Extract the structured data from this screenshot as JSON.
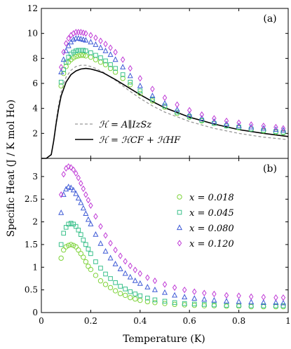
{
  "chart_data": [
    {
      "panel": "(a)",
      "type": "scatter",
      "xlabel": "Temperature (K)",
      "ylabel": "Specific Heat (J / K mol Ho)",
      "xlim": [
        0,
        1
      ],
      "ylim": [
        0,
        12
      ],
      "yticks": [
        "2",
        "4",
        "6",
        "8",
        "10",
        "12"
      ],
      "legend_placement": "lower-left",
      "lines": [
        {
          "name": "𝓗 = A∥ I_z S_z",
          "style": "dashed",
          "color": "#999999",
          "x": [
            0.0,
            0.02,
            0.04,
            0.05,
            0.06,
            0.07,
            0.08,
            0.1,
            0.12,
            0.14,
            0.16,
            0.18,
            0.2,
            0.22,
            0.25,
            0.3,
            0.35,
            0.4,
            0.45,
            0.5,
            0.6,
            0.7,
            0.8,
            0.9,
            1.0
          ],
          "y": [
            0.0,
            0.0,
            0.3,
            1.5,
            3.0,
            4.3,
            5.3,
            6.5,
            7.05,
            7.35,
            7.45,
            7.45,
            7.35,
            7.2,
            6.9,
            6.25,
            5.5,
            4.8,
            4.2,
            3.7,
            2.95,
            2.4,
            2.0,
            1.7,
            1.5
          ]
        },
        {
          "name": "𝓗 = 𝓗_CF + 𝓗_HF",
          "style": "solid",
          "color": "#000000",
          "x": [
            0.0,
            0.02,
            0.04,
            0.05,
            0.06,
            0.07,
            0.08,
            0.1,
            0.12,
            0.14,
            0.16,
            0.18,
            0.2,
            0.22,
            0.25,
            0.3,
            0.35,
            0.4,
            0.45,
            0.5,
            0.6,
            0.7,
            0.8,
            0.9,
            1.0
          ],
          "y": [
            0.0,
            0.0,
            0.3,
            1.4,
            2.8,
            4.0,
            5.0,
            6.1,
            6.7,
            7.0,
            7.15,
            7.2,
            7.15,
            7.05,
            6.85,
            6.3,
            5.7,
            5.1,
            4.55,
            4.05,
            3.3,
            2.75,
            2.3,
            2.0,
            1.75
          ]
        }
      ],
      "series": [
        {
          "x_value": "0.018",
          "marker": "circle",
          "color": "#7ed33a",
          "x": [
            0.08,
            0.09,
            0.1,
            0.11,
            0.12,
            0.13,
            0.14,
            0.15,
            0.16,
            0.17,
            0.18,
            0.2,
            0.22,
            0.24,
            0.26,
            0.28,
            0.3,
            0.33,
            0.36,
            0.4,
            0.45,
            0.5,
            0.55,
            0.6,
            0.65,
            0.7,
            0.75,
            0.8,
            0.85,
            0.9,
            0.95,
            0.98
          ],
          "y": [
            5.8,
            6.8,
            7.35,
            7.7,
            7.9,
            8.05,
            8.15,
            8.2,
            8.25,
            8.25,
            8.2,
            8.1,
            7.9,
            7.7,
            7.5,
            7.2,
            6.9,
            6.4,
            5.9,
            5.2,
            4.6,
            4.1,
            3.6,
            3.3,
            3.0,
            2.8,
            2.6,
            2.45,
            2.35,
            2.2,
            2.1,
            2.05
          ]
        },
        {
          "x_value": "0.045",
          "marker": "square",
          "color": "#39c08a",
          "x": [
            0.08,
            0.09,
            0.1,
            0.11,
            0.12,
            0.13,
            0.14,
            0.15,
            0.16,
            0.17,
            0.18,
            0.2,
            0.22,
            0.24,
            0.26,
            0.28,
            0.3,
            0.33,
            0.36,
            0.4,
            0.45,
            0.5,
            0.55,
            0.6,
            0.65,
            0.7,
            0.75,
            0.8,
            0.85,
            0.9,
            0.95,
            0.98
          ],
          "y": [
            6.1,
            7.1,
            7.7,
            8.1,
            8.35,
            8.5,
            8.6,
            8.65,
            8.65,
            8.65,
            8.6,
            8.45,
            8.25,
            8.05,
            7.8,
            7.5,
            7.2,
            6.7,
            6.1,
            5.4,
            4.75,
            4.2,
            3.7,
            3.35,
            3.05,
            2.8,
            2.6,
            2.5,
            2.35,
            2.25,
            2.15,
            2.1
          ]
        },
        {
          "x_value": "0.080",
          "marker": "triangle",
          "color": "#3f5bd6",
          "x": [
            0.08,
            0.09,
            0.1,
            0.11,
            0.12,
            0.13,
            0.14,
            0.15,
            0.16,
            0.17,
            0.18,
            0.2,
            0.22,
            0.24,
            0.26,
            0.28,
            0.3,
            0.33,
            0.36,
            0.4,
            0.45,
            0.5,
            0.55,
            0.6,
            0.65,
            0.7,
            0.75,
            0.8,
            0.85,
            0.9,
            0.95,
            0.98
          ],
          "y": [
            6.9,
            7.9,
            8.6,
            9.0,
            9.3,
            9.5,
            9.6,
            9.6,
            9.55,
            9.5,
            9.45,
            9.3,
            9.1,
            8.85,
            8.6,
            8.3,
            7.9,
            7.3,
            6.6,
            5.8,
            5.0,
            4.4,
            3.9,
            3.5,
            3.2,
            2.95,
            2.75,
            2.6,
            2.5,
            2.4,
            2.3,
            2.25
          ]
        },
        {
          "x_value": "0.120",
          "marker": "diamond",
          "color": "#c03cd6",
          "x": [
            0.08,
            0.09,
            0.1,
            0.11,
            0.12,
            0.13,
            0.14,
            0.15,
            0.16,
            0.17,
            0.18,
            0.2,
            0.22,
            0.24,
            0.26,
            0.28,
            0.3,
            0.33,
            0.36,
            0.4,
            0.45,
            0.5,
            0.55,
            0.6,
            0.65,
            0.7,
            0.75,
            0.8,
            0.85,
            0.9,
            0.95,
            0.98
          ],
          "y": [
            7.3,
            8.5,
            9.2,
            9.6,
            9.85,
            10.0,
            10.1,
            10.1,
            10.1,
            10.05,
            10.0,
            9.85,
            9.65,
            9.4,
            9.15,
            8.85,
            8.5,
            7.9,
            7.2,
            6.4,
            5.55,
            4.85,
            4.3,
            3.85,
            3.5,
            3.2,
            3.0,
            2.85,
            2.7,
            2.6,
            2.5,
            2.4
          ]
        }
      ]
    },
    {
      "panel": "(b)",
      "type": "scatter",
      "xlabel": "Temperature (K)",
      "ylabel": "Specific Heat (J / K mol Ho)",
      "xlim": [
        0,
        1
      ],
      "ylim": [
        0,
        3.4
      ],
      "xticks": [
        "0",
        "0.2",
        "0.4",
        "0.6",
        "0.8",
        "1"
      ],
      "yticks": [
        "0",
        "0.5",
        "1",
        "1.5",
        "2",
        "2.5",
        "3"
      ],
      "legend_placement": "upper-right",
      "series": [
        {
          "name": "x = 0.018",
          "marker": "circle",
          "color": "#7ed33a",
          "x": [
            0.08,
            0.09,
            0.1,
            0.11,
            0.12,
            0.13,
            0.14,
            0.15,
            0.16,
            0.17,
            0.18,
            0.19,
            0.2,
            0.22,
            0.24,
            0.26,
            0.28,
            0.3,
            0.32,
            0.34,
            0.36,
            0.38,
            0.4,
            0.43,
            0.46,
            0.5,
            0.54,
            0.58,
            0.62,
            0.66,
            0.7,
            0.75,
            0.8,
            0.85,
            0.9,
            0.95,
            0.98
          ],
          "y": [
            1.2,
            1.38,
            1.45,
            1.48,
            1.5,
            1.48,
            1.45,
            1.38,
            1.3,
            1.22,
            1.12,
            1.02,
            0.95,
            0.82,
            0.7,
            0.62,
            0.55,
            0.48,
            0.42,
            0.38,
            0.33,
            0.3,
            0.27,
            0.24,
            0.22,
            0.2,
            0.18,
            0.17,
            0.16,
            0.15,
            0.15,
            0.14,
            0.14,
            0.13,
            0.13,
            0.13,
            0.13
          ]
        },
        {
          "name": "x = 0.045",
          "marker": "square",
          "color": "#39c08a",
          "x": [
            0.08,
            0.09,
            0.1,
            0.11,
            0.12,
            0.13,
            0.14,
            0.15,
            0.16,
            0.17,
            0.18,
            0.19,
            0.2,
            0.22,
            0.24,
            0.26,
            0.28,
            0.3,
            0.32,
            0.34,
            0.36,
            0.38,
            0.4,
            0.43,
            0.46,
            0.5,
            0.54,
            0.58,
            0.62,
            0.66,
            0.7,
            0.75,
            0.8,
            0.85,
            0.9,
            0.95,
            0.98
          ],
          "y": [
            1.5,
            1.75,
            1.88,
            1.95,
            1.97,
            1.95,
            1.9,
            1.82,
            1.72,
            1.6,
            1.5,
            1.4,
            1.3,
            1.12,
            0.98,
            0.85,
            0.75,
            0.66,
            0.58,
            0.52,
            0.46,
            0.41,
            0.37,
            0.32,
            0.28,
            0.25,
            0.22,
            0.2,
            0.19,
            0.18,
            0.17,
            0.16,
            0.16,
            0.15,
            0.15,
            0.15,
            0.15
          ]
        },
        {
          "name": "x = 0.080",
          "marker": "triangle",
          "color": "#3f5bd6",
          "x": [
            0.08,
            0.09,
            0.1,
            0.11,
            0.12,
            0.13,
            0.14,
            0.15,
            0.16,
            0.17,
            0.18,
            0.19,
            0.2,
            0.22,
            0.24,
            0.26,
            0.28,
            0.3,
            0.32,
            0.34,
            0.36,
            0.38,
            0.4,
            0.43,
            0.46,
            0.5,
            0.54,
            0.58,
            0.62,
            0.66,
            0.7,
            0.75,
            0.8,
            0.85,
            0.9,
            0.95,
            0.98
          ],
          "y": [
            2.2,
            2.6,
            2.72,
            2.77,
            2.75,
            2.7,
            2.62,
            2.52,
            2.42,
            2.3,
            2.18,
            2.05,
            1.95,
            1.72,
            1.52,
            1.35,
            1.2,
            1.07,
            0.96,
            0.86,
            0.78,
            0.7,
            0.64,
            0.56,
            0.5,
            0.44,
            0.38,
            0.34,
            0.31,
            0.29,
            0.27,
            0.25,
            0.24,
            0.23,
            0.22,
            0.22,
            0.21
          ]
        },
        {
          "name": "x = 0.120",
          "marker": "diamond",
          "color": "#c03cd6",
          "x": [
            0.08,
            0.09,
            0.1,
            0.11,
            0.12,
            0.13,
            0.14,
            0.15,
            0.16,
            0.17,
            0.18,
            0.19,
            0.2,
            0.22,
            0.24,
            0.26,
            0.28,
            0.3,
            0.32,
            0.34,
            0.36,
            0.38,
            0.4,
            0.43,
            0.46,
            0.5,
            0.54,
            0.58,
            0.62,
            0.66,
            0.7,
            0.75,
            0.8,
            0.85,
            0.9,
            0.95,
            0.98
          ],
          "y": [
            2.6,
            3.05,
            3.18,
            3.22,
            3.2,
            3.15,
            3.07,
            2.97,
            2.85,
            2.73,
            2.6,
            2.48,
            2.36,
            2.12,
            1.9,
            1.7,
            1.53,
            1.38,
            1.25,
            1.13,
            1.03,
            0.94,
            0.86,
            0.77,
            0.7,
            0.62,
            0.55,
            0.5,
            0.46,
            0.43,
            0.41,
            0.38,
            0.37,
            0.35,
            0.34,
            0.33,
            0.33
          ]
        }
      ]
    }
  ],
  "figure": {
    "ylabel": "Specific Heat (J / K mol Ho)",
    "xlabel": "Temperature (K)",
    "legend_a": [
      "ℋ = A∥IzSz",
      "ℋ = ℋCF + ℋHF"
    ],
    "legend_b": [
      "x = 0.018",
      "x = 0.045",
      "x = 0.080",
      "x = 0.120"
    ],
    "panel_a": "(a)",
    "panel_b": "(b)"
  }
}
